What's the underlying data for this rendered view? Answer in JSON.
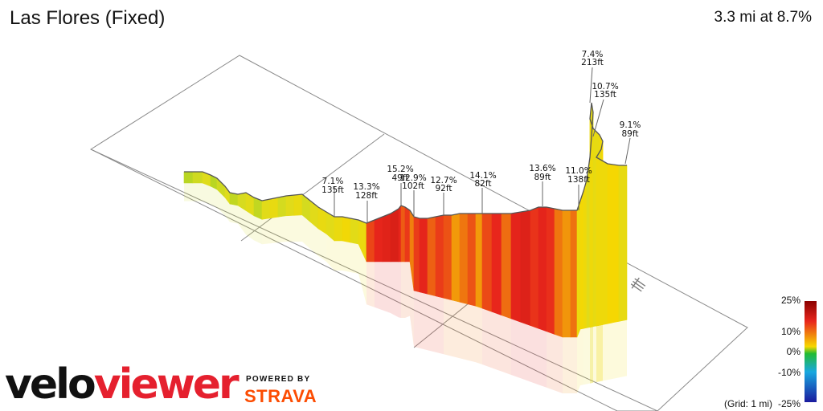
{
  "header": {
    "title": "Las Flores (Fixed)",
    "stats": "3.3 mi at 8.7%"
  },
  "segments": [
    {
      "grade": "7.1%",
      "gain": "135ft"
    },
    {
      "grade": "13.3%",
      "gain": "128ft"
    },
    {
      "grade": "15.2%",
      "gain": "49ft"
    },
    {
      "grade": "12.9%",
      "gain": "102ft"
    },
    {
      "grade": "12.7%",
      "gain": "92ft"
    },
    {
      "grade": "14.1%",
      "gain": "82ft"
    },
    {
      "grade": "13.6%",
      "gain": "89ft"
    },
    {
      "grade": "11.0%",
      "gain": "138ft"
    },
    {
      "grade": "7.4%",
      "gain": "213ft"
    },
    {
      "grade": "10.7%",
      "gain": "135ft"
    },
    {
      "grade": "9.1%",
      "gain": "89ft"
    }
  ],
  "legend": {
    "ticks": [
      "25%",
      "10%",
      "0%",
      "-10%",
      "-25%"
    ],
    "grid_note": "(Grid: 1 mi)",
    "colors": {
      "max": "#8b0000",
      "high": "#e8261c",
      "mid_high": "#f7d700",
      "zero": "#22bb33",
      "low": "#18a8e0",
      "min": "#1a1a9e"
    }
  },
  "branding": {
    "logo_part1": "velo",
    "logo_part2": "viewer",
    "powered_by": "POWERED BY",
    "strava": "STRAVA"
  },
  "icons": {
    "compass": "north-arrow-icon"
  }
}
